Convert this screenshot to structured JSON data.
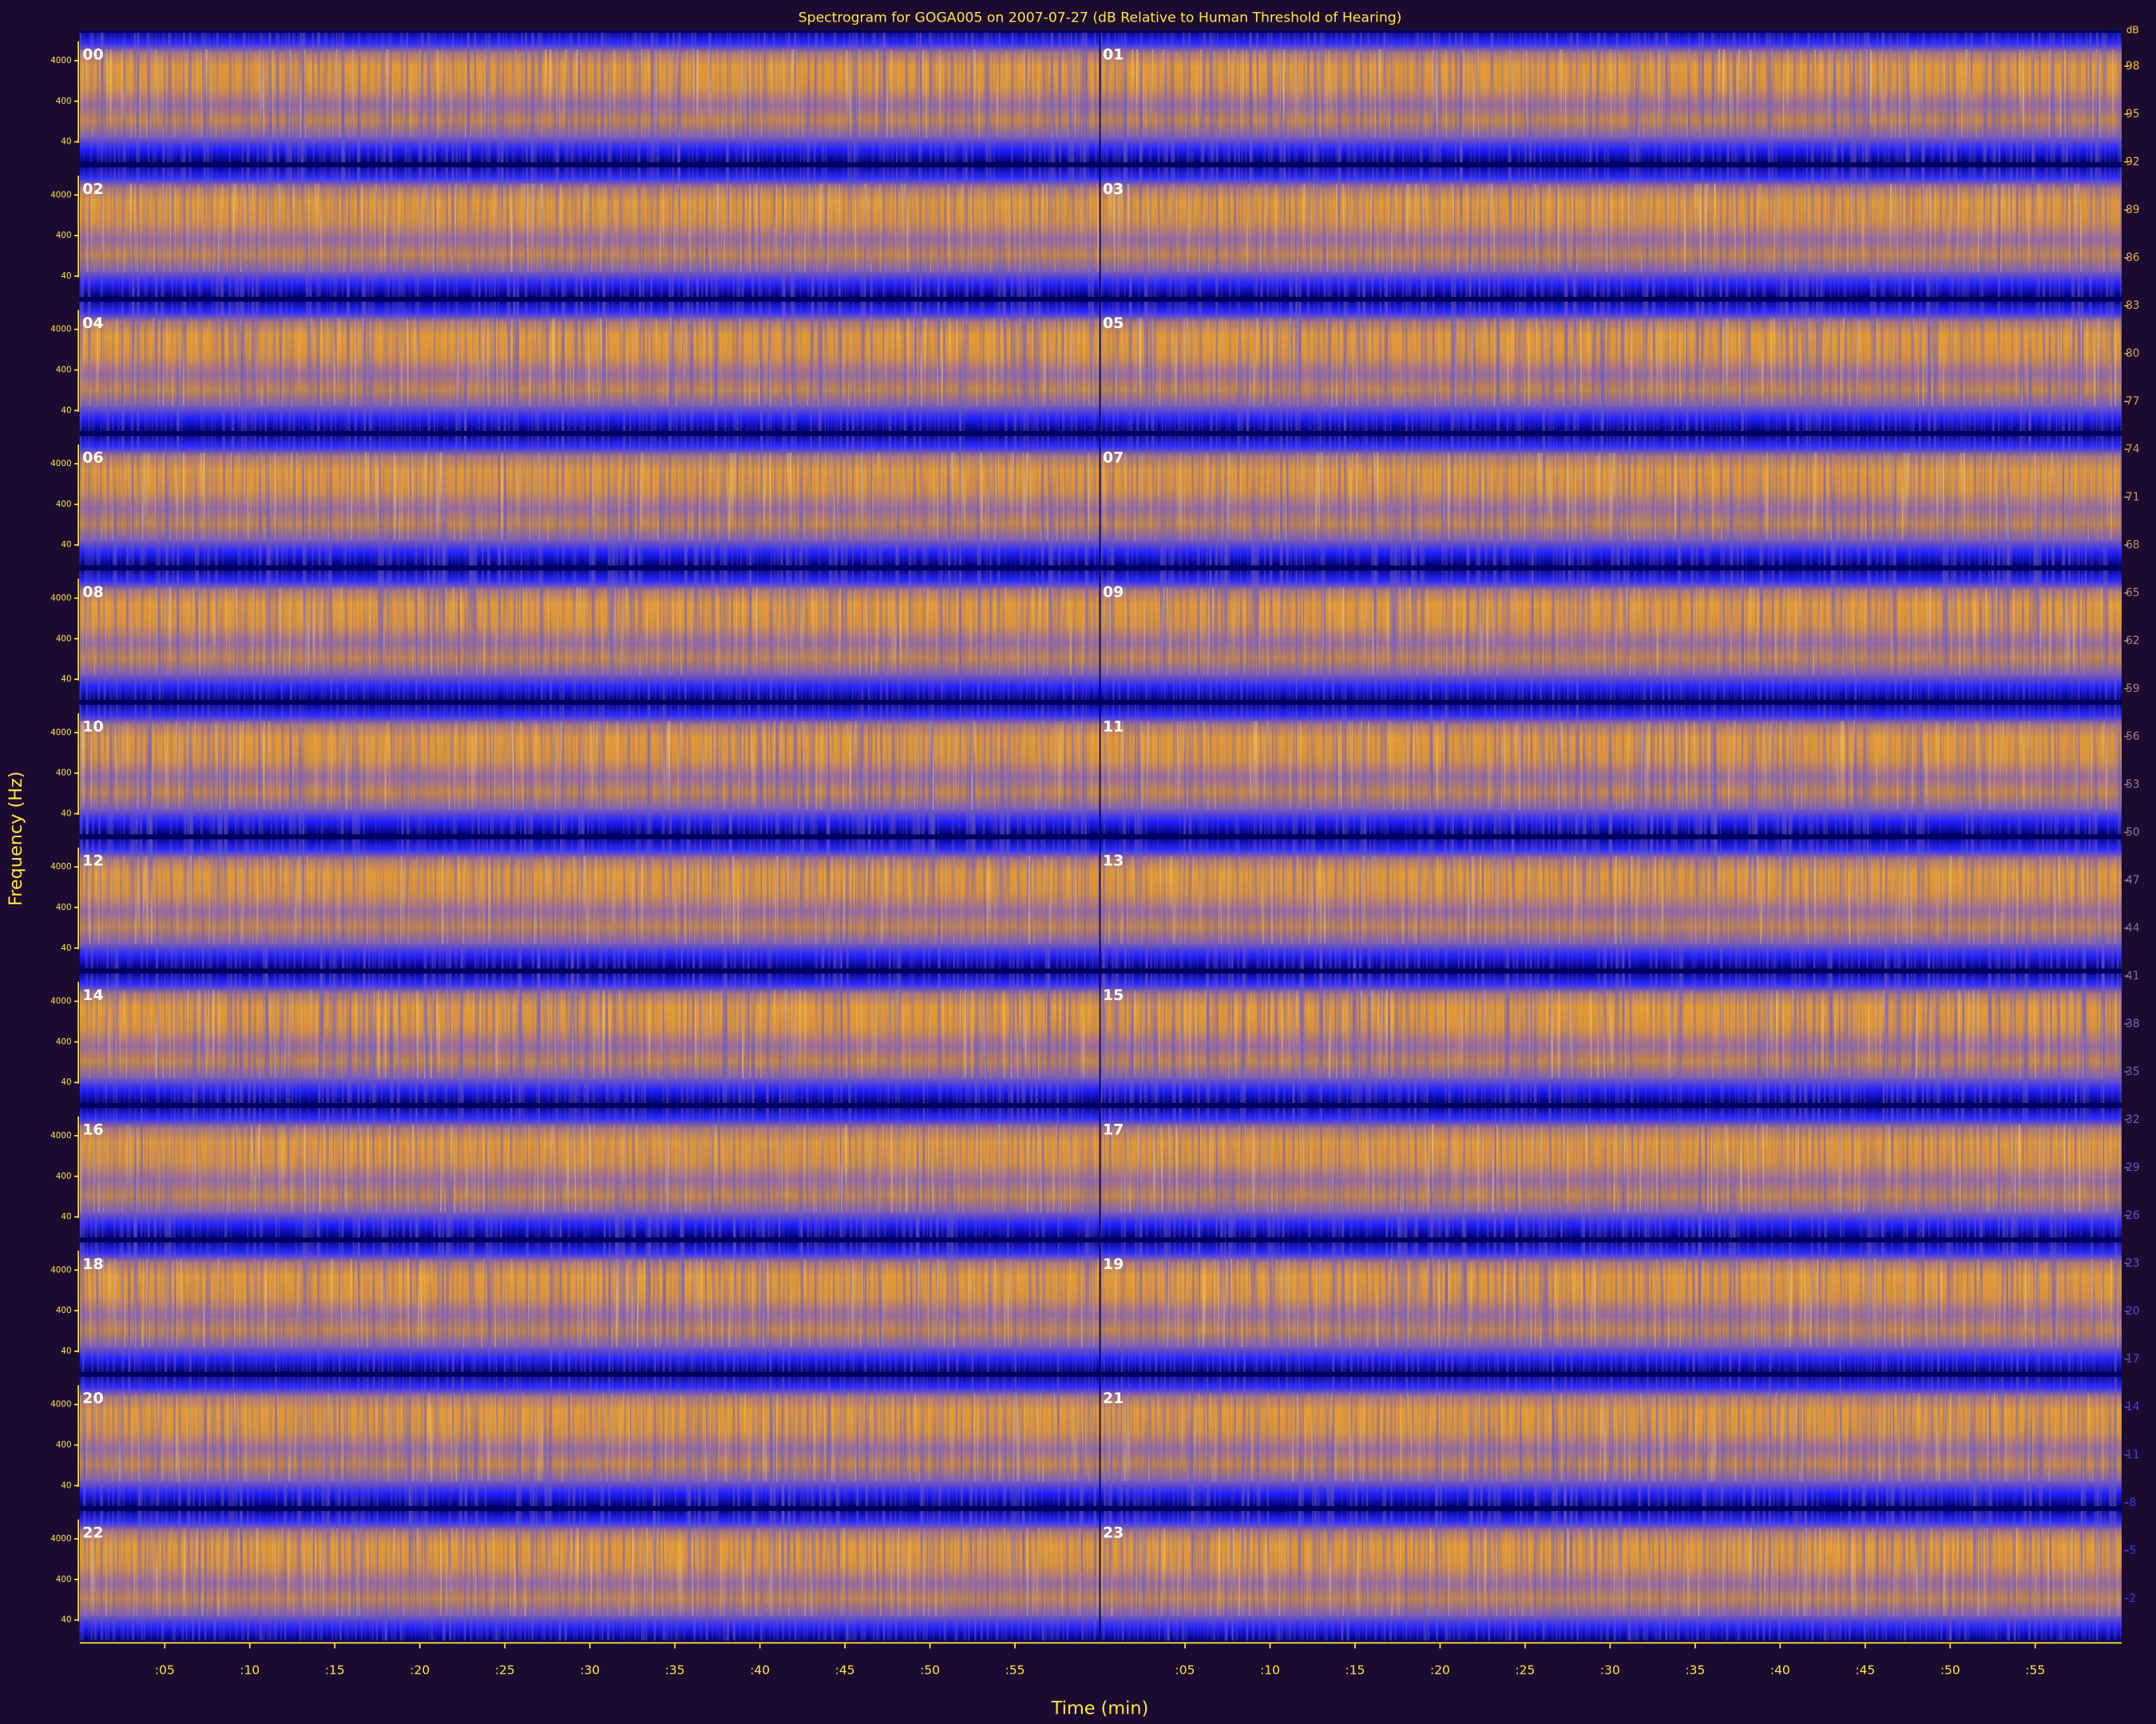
{
  "chart_data": {
    "type": "spectrogram",
    "title": "Spectrogram for GOGA005 on 2007-07-27 (dB Relative to Human Threshold of Hearing)",
    "y_label": "Frequency (Hz)",
    "x_label": "Time (min)",
    "panels": [
      "00",
      "01",
      "02",
      "03",
      "04",
      "05",
      "06",
      "07",
      "08",
      "09",
      "10",
      "11",
      "12",
      "13",
      "14",
      "15",
      "16",
      "17",
      "18",
      "19",
      "20",
      "21",
      "22",
      "23"
    ],
    "log_y": true,
    "ylim": [
      20,
      12000
    ],
    "yticks": [
      40,
      400,
      4000
    ],
    "xlim": [
      0,
      60
    ],
    "xticks": [
      {
        "value": 5,
        "label": ":05"
      },
      {
        "value": 10,
        "label": ":10"
      },
      {
        "value": 15,
        "label": ":15"
      },
      {
        "value": 20,
        "label": ":20"
      },
      {
        "value": 25,
        "label": ":25"
      },
      {
        "value": 30,
        "label": ":30"
      },
      {
        "value": 35,
        "label": ":35"
      },
      {
        "value": 40,
        "label": ":40"
      },
      {
        "value": 45,
        "label": ":45"
      },
      {
        "value": 50,
        "label": ":50"
      },
      {
        "value": 55,
        "label": ":55"
      }
    ],
    "colorbar_label": "dB",
    "clim": [
      0,
      100
    ],
    "colorbar_ticks": [
      98,
      95,
      92,
      89,
      86,
      83,
      80,
      77,
      74,
      71,
      68,
      65,
      62,
      59,
      56,
      53,
      50,
      47,
      44,
      41,
      38,
      35,
      32,
      29,
      26,
      23,
      20,
      17,
      14,
      11,
      8,
      5,
      2
    ],
    "colormap": [
      "#3030ff",
      "#ffc030"
    ]
  }
}
